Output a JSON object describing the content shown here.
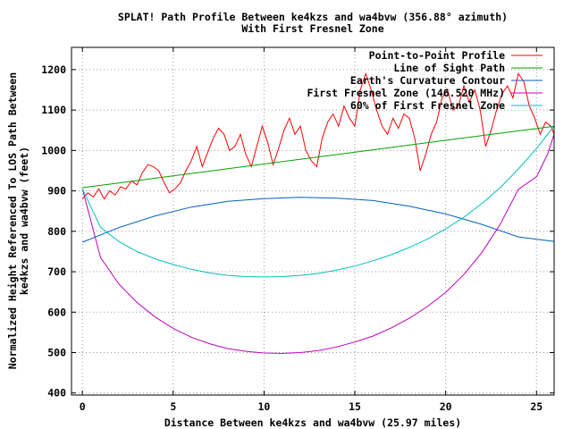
{
  "chart_data": {
    "type": "line",
    "title": "SPLAT! Path Profile Between ke4kzs and wa4bvw (356.88° azimuth)",
    "subtitle": "With First Fresnel Zone",
    "xlabel": "Distance Between ke4kzs and wa4bvw (25.97 miles)",
    "ylabel_line1": "Normalized Height Referenced To LOS Path Between",
    "ylabel_line2": "ke4kzs and wa4bvw (feet)",
    "xlim": [
      -0.6,
      25.97
    ],
    "ylim": [
      395,
      1255
    ],
    "x_ticks": [
      0,
      5,
      10,
      15,
      20,
      25
    ],
    "y_ticks": [
      400,
      500,
      600,
      700,
      800,
      900,
      1000,
      1100,
      1200
    ],
    "grid": true,
    "legend_position": "top-right",
    "series": [
      {
        "name": "Point-to-Point Profile",
        "color": "#ff0000",
        "x": [
          0,
          0.3,
          0.6,
          0.9,
          1.2,
          1.5,
          1.8,
          2.1,
          2.4,
          2.7,
          3.0,
          3.3,
          3.6,
          3.9,
          4.2,
          4.5,
          4.8,
          5.1,
          5.4,
          5.7,
          6.0,
          6.3,
          6.6,
          6.9,
          7.2,
          7.5,
          7.8,
          8.1,
          8.4,
          8.7,
          9.0,
          9.3,
          9.6,
          9.9,
          10.2,
          10.5,
          10.8,
          11.1,
          11.4,
          11.7,
          12.0,
          12.3,
          12.6,
          12.9,
          13.2,
          13.5,
          13.8,
          14.1,
          14.4,
          14.7,
          15.0,
          15.3,
          15.6,
          15.9,
          16.2,
          16.5,
          16.8,
          17.1,
          17.4,
          17.7,
          18.0,
          18.3,
          18.6,
          18.9,
          19.2,
          19.5,
          19.8,
          20.1,
          20.4,
          20.7,
          21.0,
          21.3,
          21.6,
          21.9,
          22.2,
          22.5,
          22.8,
          23.1,
          23.4,
          23.7,
          24.0,
          24.3,
          24.6,
          24.9,
          25.2,
          25.5,
          25.8,
          25.97
        ],
        "y": [
          880,
          895,
          885,
          905,
          880,
          900,
          890,
          910,
          905,
          925,
          915,
          945,
          965,
          960,
          950,
          920,
          895,
          905,
          920,
          950,
          975,
          1010,
          960,
          995,
          1030,
          1055,
          1040,
          1000,
          1010,
          1040,
          990,
          960,
          1010,
          1060,
          1020,
          965,
          1005,
          1050,
          1080,
          1040,
          1060,
          1000,
          975,
          960,
          1030,
          1070,
          1090,
          1060,
          1110,
          1080,
          1060,
          1150,
          1190,
          1150,
          1100,
          1060,
          1040,
          1080,
          1055,
          1090,
          1080,
          1030,
          950,
          990,
          1040,
          1070,
          1130,
          1150,
          1100,
          1110,
          1160,
          1120,
          1150,
          1100,
          1010,
          1050,
          1100,
          1140,
          1160,
          1130,
          1190,
          1170,
          1110,
          1080,
          1040,
          1070,
          1060,
          1040
        ]
      },
      {
        "name": "Line of Sight Path",
        "color": "#00a000",
        "x": [
          0,
          25.97
        ],
        "y": [
          908,
          1060
        ]
      },
      {
        "name": "Earth's Curvature Contour",
        "color": "#0060c0",
        "x": [
          0,
          2,
          4,
          6,
          8,
          10,
          12,
          14,
          16,
          18,
          20,
          22,
          24,
          25.97
        ],
        "y": [
          773,
          809,
          838,
          860,
          874,
          881,
          884,
          882,
          876,
          862,
          843,
          817,
          786,
          775
        ]
      },
      {
        "name": "First Fresnel Zone (146.520 MHz)",
        "color": "#c000c0",
        "x": [
          0,
          1,
          2,
          3,
          4,
          5,
          6,
          7,
          8,
          9,
          10,
          11,
          12,
          13,
          14,
          15,
          16,
          17,
          18,
          19,
          20,
          21,
          22,
          23,
          24,
          25,
          25.6,
          25.97
        ],
        "y": [
          905,
          735,
          670,
          624,
          588,
          560,
          538,
          522,
          510,
          503,
          499,
          498,
          500,
          505,
          514,
          526,
          541,
          561,
          585,
          614,
          649,
          693,
          748,
          817,
          904,
          935,
          990,
          1040
        ]
      },
      {
        "name": "60% of First Fresnel Zone",
        "color": "#00c0c0",
        "x": [
          0,
          1,
          2,
          3,
          4,
          5,
          6,
          7,
          8,
          9,
          10,
          11,
          12,
          13,
          14,
          15,
          16,
          17,
          18,
          19,
          20,
          21,
          22,
          23,
          24,
          25,
          25.97
        ],
        "y": [
          905,
          810,
          775,
          750,
          732,
          718,
          706,
          697,
          691,
          688,
          687,
          688,
          691,
          696,
          704,
          714,
          727,
          742,
          760,
          781,
          806,
          835,
          869,
          908,
          954,
          1005,
          1060
        ]
      }
    ]
  }
}
